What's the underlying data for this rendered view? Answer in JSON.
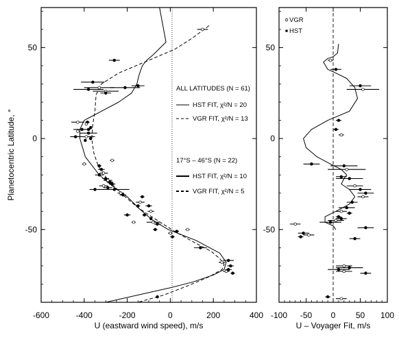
{
  "chart_data": [
    {
      "type": "scatter",
      "xlabel": "U (eastward wind speed), m/s",
      "ylabel": "Planetocentric Latitude, °",
      "xlim": [
        -600,
        400
      ],
      "ylim": [
        -90,
        72
      ],
      "xticks": [
        "-600",
        "-400",
        "-200",
        "0",
        "200",
        "400"
      ],
      "yticks": [
        "50",
        "0",
        "-50"
      ],
      "annotations": [
        "ALL LATITUDES (N = 61)",
        "HST FIT, χ²/N = 20",
        "VGR FIT, χ²/N = 13",
        "17°S – 46°S (N = 22)",
        "HST FIT, χ²/N = 10",
        "VGR FIT, χ²/N = 5"
      ],
      "series": [
        {
          "kind": "points",
          "points": [
            {
              "x": 150,
              "y": 60,
              "err": 25
            },
            {
              "x": -260,
              "y": 43,
              "err": 25
            },
            {
              "x": -360,
              "y": 31,
              "err": 55
            },
            {
              "x": -330,
              "y": 28,
              "err": 70
            },
            {
              "x": -210,
              "y": 28,
              "err": 70
            },
            {
              "x": -380,
              "y": 27,
              "err": 70
            },
            {
              "x": -300,
              "y": 26,
              "err": 60
            },
            {
              "x": -150,
              "y": 29,
              "err": 30
            },
            {
              "x": -300,
              "y": 25,
              "err": 25
            },
            {
              "x": -430,
              "y": 9,
              "err": 30
            },
            {
              "x": -410,
              "y": 5,
              "err": 40
            },
            {
              "x": -380,
              "y": 3,
              "err": 40
            },
            {
              "x": -390,
              "y": 1,
              "err": 40
            },
            {
              "x": -440,
              "y": 1,
              "err": 25
            },
            {
              "x": -385,
              "y": 9,
              "err": 10
            },
            {
              "x": -390,
              "y": 8,
              "err": 5
            },
            {
              "x": -370,
              "y": 6,
              "err": 5
            },
            {
              "x": -380,
              "y": 5,
              "err": 5
            },
            {
              "x": -430,
              "y": 4,
              "err": 5
            },
            {
              "x": -395,
              "y": -1,
              "err": 5
            },
            {
              "x": -370,
              "y": 0,
              "err": 5
            },
            {
              "x": -400,
              "y": -14,
              "err": 10
            },
            {
              "x": -330,
              "y": -15,
              "err": 10
            },
            {
              "x": -320,
              "y": -17,
              "err": 15
            },
            {
              "x": -310,
              "y": -19,
              "err": 20
            },
            {
              "x": -330,
              "y": -20,
              "err": 20
            },
            {
              "x": -300,
              "y": -22,
              "err": 15
            },
            {
              "x": -290,
              "y": -23,
              "err": 20
            },
            {
              "x": -280,
              "y": -24,
              "err": 15
            },
            {
              "x": -270,
              "y": -25,
              "err": 15
            },
            {
              "x": -310,
              "y": -26,
              "err": 20
            },
            {
              "x": -290,
              "y": -27,
              "err": 20
            },
            {
              "x": -260,
              "y": -28,
              "err": 70
            },
            {
              "x": -230,
              "y": -30,
              "err": 15
            },
            {
              "x": -220,
              "y": -31,
              "err": 15
            },
            {
              "x": -130,
              "y": -32,
              "err": 10
            },
            {
              "x": -140,
              "y": -35,
              "err": 20
            },
            {
              "x": -100,
              "y": -37,
              "err": 15
            },
            {
              "x": -150,
              "y": -37,
              "err": 10
            },
            {
              "x": -90,
              "y": -40,
              "err": 15
            },
            {
              "x": -120,
              "y": -42,
              "err": 10
            },
            {
              "x": -90,
              "y": -44,
              "err": 5
            },
            {
              "x": -80,
              "y": -46,
              "err": 30
            },
            {
              "x": -60,
              "y": -47,
              "err": 15
            },
            {
              "x": -70,
              "y": -50,
              "err": 10
            },
            {
              "x": 0,
              "y": -52,
              "err": 10
            },
            {
              "x": 30,
              "y": -51,
              "err": 10
            },
            {
              "x": 10,
              "y": -54,
              "err": 10
            },
            {
              "x": 80,
              "y": -50,
              "err": 10
            },
            {
              "x": 140,
              "y": -60,
              "err": 30
            },
            {
              "x": 270,
              "y": -67,
              "err": 25
            },
            {
              "x": 240,
              "y": -68,
              "err": 15
            },
            {
              "x": 280,
              "y": -70,
              "err": 15
            },
            {
              "x": 270,
              "y": -72,
              "err": 15
            },
            {
              "x": 260,
              "y": -73,
              "err": 15
            },
            {
              "x": 290,
              "y": -74,
              "err": 10
            },
            {
              "x": -60,
              "y": -87,
              "err": 5
            },
            {
              "x": -270,
              "y": -12,
              "err": 10
            },
            {
              "x": -350,
              "y": -28,
              "err": 25
            },
            {
              "x": -200,
              "y": -42,
              "err": 15
            },
            {
              "x": -170,
              "y": -46,
              "err": 10
            }
          ]
        },
        {
          "kind": "line",
          "style": "solid",
          "points": [
            [
              -50,
              93
            ],
            [
              -20,
              53
            ],
            [
              -80,
              46
            ],
            [
              -110,
              43
            ],
            [
              -130,
              40
            ],
            [
              -145,
              35
            ],
            [
              -155,
              30
            ],
            [
              -180,
              25
            ],
            [
              -240,
              20
            ],
            [
              -320,
              15
            ],
            [
              -400,
              10
            ],
            [
              -420,
              5
            ],
            [
              -420,
              0
            ],
            [
              -395,
              -10
            ],
            [
              -330,
              -20
            ],
            [
              -270,
              -26
            ],
            [
              -200,
              -32
            ],
            [
              -140,
              -39
            ],
            [
              -80,
              -45
            ],
            [
              -10,
              -50
            ],
            [
              120,
              -56
            ],
            [
              230,
              -63
            ],
            [
              260,
              -68
            ],
            [
              250,
              -72
            ],
            [
              200,
              -75
            ],
            [
              100,
              -79
            ],
            [
              0,
              -82
            ],
            [
              -150,
              -86
            ],
            [
              -300,
              -91
            ]
          ]
        },
        {
          "kind": "line",
          "style": "dashed",
          "points": [
            [
              180,
              62
            ],
            [
              100,
              55
            ],
            [
              20,
              49
            ],
            [
              -100,
              43
            ],
            [
              -240,
              36
            ],
            [
              -320,
              30
            ],
            [
              -345,
              24
            ],
            [
              -350,
              15
            ],
            [
              -360,
              8
            ],
            [
              -365,
              0
            ],
            [
              -355,
              -8
            ],
            [
              -335,
              -15
            ],
            [
              -295,
              -22
            ],
            [
              -230,
              -30
            ],
            [
              -150,
              -38
            ],
            [
              -60,
              -45
            ],
            [
              20,
              -51
            ],
            [
              110,
              -57
            ],
            [
              190,
              -62
            ],
            [
              230,
              -66
            ],
            [
              250,
              -69
            ],
            [
              240,
              -72
            ],
            [
              180,
              -76
            ],
            [
              80,
              -81
            ],
            [
              -30,
              -86
            ],
            [
              -150,
              -90
            ]
          ]
        }
      ]
    },
    {
      "type": "scatter",
      "xlabel": "U – Voyager Fit, m/s",
      "xlim": [
        -100,
        100
      ],
      "ylim": [
        -90,
        72
      ],
      "xticks": [
        "-100",
        "-50",
        "0",
        "50",
        "100"
      ],
      "yticks": [
        "50",
        "0",
        "-50"
      ],
      "legend": [
        "VGR",
        "HST"
      ],
      "series": [
        {
          "kind": "points",
          "points": [
            {
              "x": -5,
              "y": 43,
              "err": 5
            },
            {
              "x": 5,
              "y": 38,
              "err": 10
            },
            {
              "x": 50,
              "y": 29,
              "err": 20
            },
            {
              "x": 55,
              "y": 27,
              "err": 30
            },
            {
              "x": 10,
              "y": 10,
              "err": 5
            },
            {
              "x": 5,
              "y": 5,
              "err": 5
            },
            {
              "x": 15,
              "y": 2,
              "err": 5
            },
            {
              "x": -40,
              "y": -14,
              "err": 15
            },
            {
              "x": 20,
              "y": -15,
              "err": 25
            },
            {
              "x": 25,
              "y": -17,
              "err": 35
            },
            {
              "x": 15,
              "y": -21,
              "err": 10
            },
            {
              "x": 30,
              "y": -22,
              "err": 25
            },
            {
              "x": 40,
              "y": -26,
              "err": 15
            },
            {
              "x": 50,
              "y": -28,
              "err": 20
            },
            {
              "x": 60,
              "y": -30,
              "err": 15
            },
            {
              "x": 55,
              "y": -32,
              "err": 10
            },
            {
              "x": 35,
              "y": -35,
              "err": 10
            },
            {
              "x": 25,
              "y": -38,
              "err": 15
            },
            {
              "x": 15,
              "y": -40,
              "err": 10
            },
            {
              "x": 30,
              "y": -41,
              "err": 5
            },
            {
              "x": 10,
              "y": -43,
              "err": 5
            },
            {
              "x": 5,
              "y": -45,
              "err": 15
            },
            {
              "x": -5,
              "y": -46,
              "err": 20
            },
            {
              "x": 15,
              "y": -44,
              "err": 10
            },
            {
              "x": -70,
              "y": -47,
              "err": 10
            },
            {
              "x": 60,
              "y": -49,
              "err": 15
            },
            {
              "x": -55,
              "y": -52,
              "err": 10
            },
            {
              "x": -45,
              "y": -53,
              "err": 10
            },
            {
              "x": -60,
              "y": -54,
              "err": 5
            },
            {
              "x": 40,
              "y": -55,
              "err": 10
            },
            {
              "x": 20,
              "y": -70,
              "err": 15
            },
            {
              "x": 30,
              "y": -71,
              "err": 25
            },
            {
              "x": 10,
              "y": -72,
              "err": 20
            },
            {
              "x": 20,
              "y": -73,
              "err": 15
            },
            {
              "x": 60,
              "y": -74,
              "err": 10
            },
            {
              "x": -10,
              "y": -87,
              "err": 5
            },
            {
              "x": 15,
              "y": -88,
              "err": 10
            }
          ]
        },
        {
          "kind": "line",
          "style": "solid",
          "points": [
            [
              10,
              52
            ],
            [
              8,
              47
            ],
            [
              0,
              45
            ],
            [
              -10,
              44
            ],
            [
              -18,
              42
            ],
            [
              -10,
              38
            ],
            [
              5,
              36
            ],
            [
              25,
              33
            ],
            [
              40,
              28
            ],
            [
              45,
              22
            ],
            [
              30,
              15
            ],
            [
              -10,
              10
            ],
            [
              -40,
              5
            ],
            [
              -55,
              0
            ],
            [
              -50,
              -5
            ],
            [
              -30,
              -10
            ],
            [
              -5,
              -14
            ],
            [
              15,
              -17
            ],
            [
              25,
              -20
            ],
            [
              20,
              -22
            ],
            [
              15,
              -25
            ],
            [
              30,
              -28
            ],
            [
              40,
              -32
            ],
            [
              30,
              -36
            ],
            [
              5,
              -40
            ],
            [
              -15,
              -43
            ],
            [
              -15,
              -46
            ],
            [
              0,
              -48
            ],
            [
              5,
              -50
            ]
          ]
        }
      ]
    }
  ]
}
